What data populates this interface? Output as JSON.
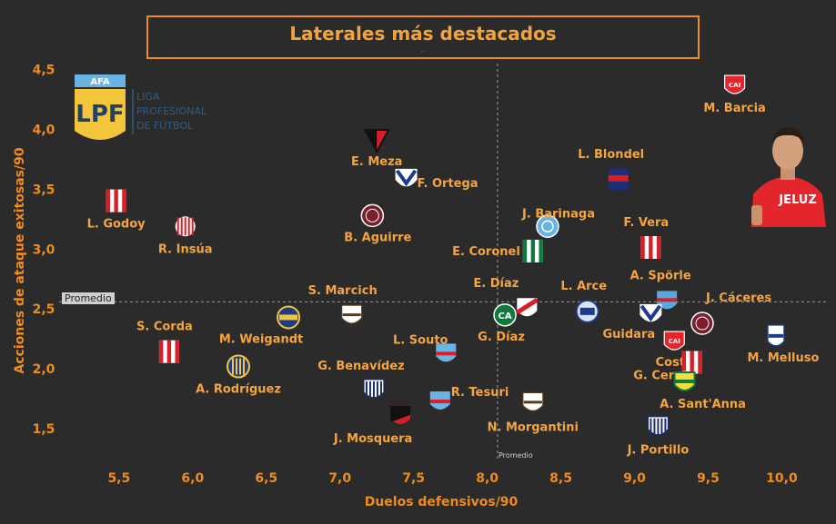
{
  "title": "Laterales más destacados",
  "subtitle": "..",
  "logo": {
    "badge_text": "AFA",
    "letters": "LPF",
    "lines": [
      "LIGA",
      "PROFESIONAL",
      "DE FÚTBOL"
    ]
  },
  "photo_banner": "JELUZ",
  "chart_data": {
    "type": "scatter",
    "xlabel": "Duelos defensivos/90",
    "ylabel": "Acciones de ataque exitosas/90",
    "xlim": [
      5.05,
      10.3
    ],
    "ylim": [
      1.25,
      4.55
    ],
    "xticks": [
      "5,5",
      "6,0",
      "6,5",
      "7,0",
      "7,5",
      "8,0",
      "8,5",
      "9,0",
      "9,5",
      "10,0"
    ],
    "xtick_values": [
      5.5,
      6.0,
      6.5,
      7.0,
      7.5,
      8.0,
      8.5,
      9.0,
      9.5,
      10.0
    ],
    "yticks": [
      "1,5",
      "2,0",
      "2,5",
      "3,0",
      "3,5",
      "4,0",
      "4,5"
    ],
    "ytick_values": [
      1.5,
      2.0,
      2.5,
      3.0,
      3.5,
      4.0,
      4.5
    ],
    "avg_x": 8.07,
    "avg_y": 2.56,
    "avg_y_label": "Promedio",
    "avg_x_label": "Promedio",
    "points": [
      {
        "name": "M. Barcia",
        "x": 9.68,
        "y": 4.36,
        "club": "independiente"
      },
      {
        "name": "E. Meza",
        "x": 7.25,
        "y": 3.92,
        "club": "colon"
      },
      {
        "name": "L. Blondel",
        "x": 8.89,
        "y": 3.58,
        "club": "tigre"
      },
      {
        "name": "F. Ortega",
        "x": 7.45,
        "y": 3.58,
        "club": "velez"
      },
      {
        "name": "L. Godoy",
        "x": 5.48,
        "y": 3.4,
        "club": "estudiantes"
      },
      {
        "name": "J. Barinaga",
        "x": 8.41,
        "y": 3.19,
        "club": "belgrano"
      },
      {
        "name": "B. Aguirre",
        "x": 7.22,
        "y": 3.28,
        "club": "lanus"
      },
      {
        "name": "R. Insúa",
        "x": 5.95,
        "y": 3.19,
        "club": "barracas"
      },
      {
        "name": "F. Vera",
        "x": 9.11,
        "y": 3.01,
        "club": "instituto"
      },
      {
        "name": "E. Coronel",
        "x": 8.31,
        "y": 2.98,
        "club": "banfield"
      },
      {
        "name": "A. Spörle",
        "x": 9.22,
        "y": 2.56,
        "club": "banfieldalt"
      },
      {
        "name": "E. Díaz",
        "x": 8.27,
        "y": 2.5,
        "club": "river"
      },
      {
        "name": "L. Arce",
        "x": 8.68,
        "y": 2.48,
        "club": "godoycruz"
      },
      {
        "name": "J. Cáceres",
        "x": 9.46,
        "y": 2.38,
        "club": "lanus"
      },
      {
        "name": "G. Díaz",
        "x": 8.12,
        "y": 2.45,
        "club": "sarmiento"
      },
      {
        "name": "S. Marcich",
        "x": 7.08,
        "y": 2.44,
        "club": "platense"
      },
      {
        "name": "M. Weigandt",
        "x": 6.65,
        "y": 2.43,
        "club": "boca"
      },
      {
        "name": "Guidara",
        "x": 9.11,
        "y": 2.45,
        "club": "velez"
      },
      {
        "name": "Costa",
        "x": 9.27,
        "y": 2.22,
        "club": "independiente"
      },
      {
        "name": "M. Melluso",
        "x": 9.96,
        "y": 2.26,
        "club": "gimnasia"
      },
      {
        "name": "S. Corda",
        "x": 5.84,
        "y": 2.14,
        "club": "estudiantes"
      },
      {
        "name": "L. Souto",
        "x": 7.72,
        "y": 2.12,
        "club": "arsenal"
      },
      {
        "name": "G. Cerato",
        "x": 9.39,
        "y": 2.05,
        "club": "estudiantes"
      },
      {
        "name": "A. Rodríguez",
        "x": 6.31,
        "y": 2.02,
        "club": "rosario"
      },
      {
        "name": "A. Sant'Anna",
        "x": 9.34,
        "y": 1.88,
        "club": "defensa"
      },
      {
        "name": "G. Benavídez",
        "x": 7.23,
        "y": 1.82,
        "club": "talleres"
      },
      {
        "name": "R. Tesuri",
        "x": 7.68,
        "y": 1.72,
        "club": "arsenal"
      },
      {
        "name": "N. Morgantini",
        "x": 8.31,
        "y": 1.71,
        "club": "platense"
      },
      {
        "name": "J. Mosquera",
        "x": 7.41,
        "y": 1.6,
        "club": "newells"
      },
      {
        "name": "J. Portillo",
        "x": 9.16,
        "y": 1.51,
        "club": "talleres"
      }
    ]
  },
  "colors": {
    "background": "#2b2b2b",
    "accent": "#f08c1e",
    "label": "#f4a440",
    "avg_line": "#9a9a9a"
  }
}
